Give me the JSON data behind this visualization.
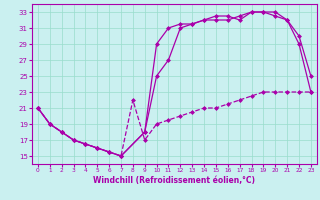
{
  "xlabel": "Windchill (Refroidissement éolien,°C)",
  "bg_color": "#caf0f0",
  "grid_color": "#99ddcc",
  "line_color": "#aa00aa",
  "xlim": [
    -0.5,
    23.5
  ],
  "ylim": [
    14,
    34
  ],
  "xticks": [
    0,
    1,
    2,
    3,
    4,
    5,
    6,
    7,
    8,
    9,
    10,
    11,
    12,
    13,
    14,
    15,
    16,
    17,
    18,
    19,
    20,
    21,
    22,
    23
  ],
  "yticks": [
    15,
    17,
    19,
    21,
    23,
    25,
    27,
    29,
    31,
    33
  ],
  "line1_x": [
    0,
    1,
    2,
    3,
    4,
    5,
    6,
    7,
    8,
    9,
    10,
    11,
    12,
    13,
    14,
    15,
    16,
    17,
    18,
    19,
    20,
    21,
    22,
    23
  ],
  "line1_y": [
    21,
    19,
    18,
    17,
    16.5,
    16,
    15.5,
    15,
    22,
    17,
    19,
    19.5,
    20,
    20.5,
    21,
    21,
    21.5,
    22,
    22.5,
    23,
    23,
    23,
    23,
    23
  ],
  "line2_x": [
    0,
    1,
    2,
    3,
    4,
    5,
    6,
    7,
    9,
    10,
    11,
    12,
    13,
    14,
    15,
    16,
    17,
    18,
    19,
    20,
    21,
    22,
    23
  ],
  "line2_y": [
    21,
    19,
    18,
    17,
    16.5,
    16,
    15.5,
    15,
    18,
    25,
    27,
    31,
    31.5,
    32,
    32.5,
    32.5,
    32,
    33,
    33,
    33,
    32,
    30,
    25
  ],
  "line3_x": [
    0,
    1,
    2,
    3,
    4,
    5,
    6,
    7,
    9,
    10,
    11,
    12,
    13,
    14,
    15,
    16,
    17,
    18,
    19,
    20,
    21,
    22,
    23
  ],
  "line3_y": [
    21,
    19,
    18,
    17,
    16.5,
    16,
    15.5,
    15,
    18,
    29,
    31,
    31.5,
    31.5,
    32,
    32,
    32,
    32.5,
    33,
    33,
    32.5,
    32,
    29,
    23
  ]
}
